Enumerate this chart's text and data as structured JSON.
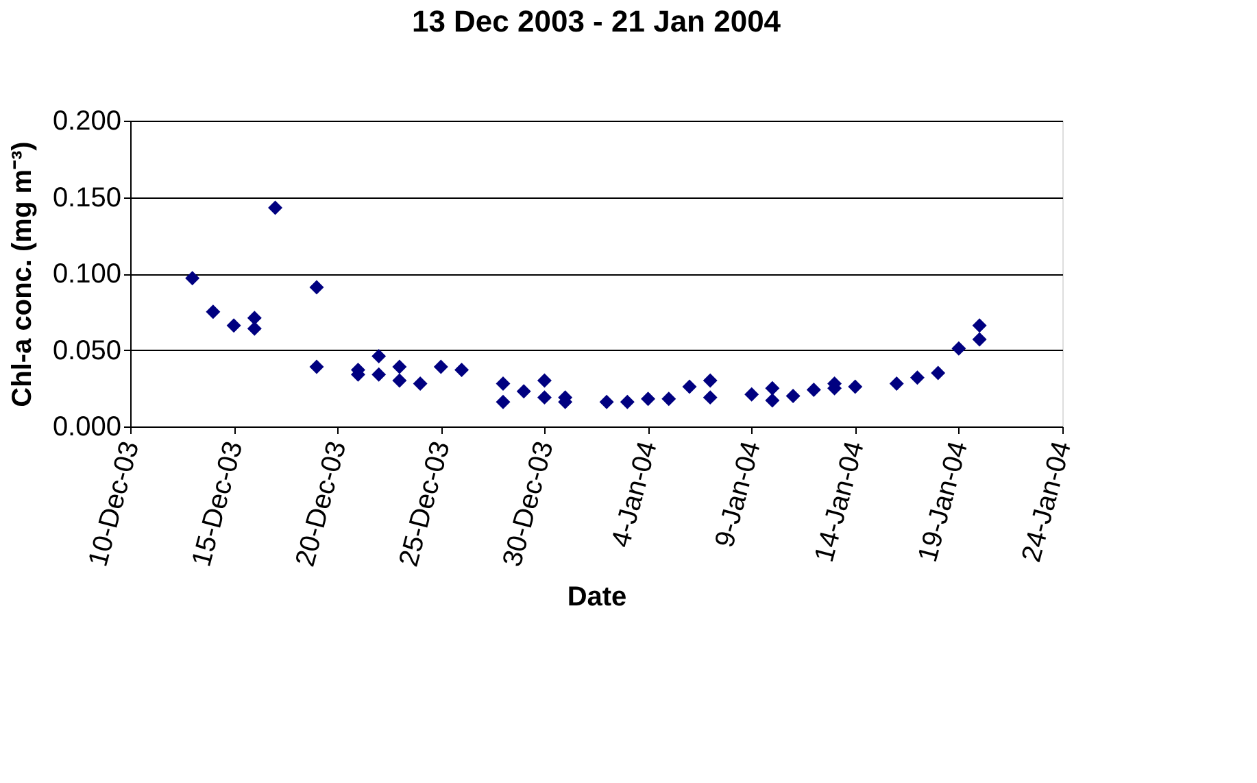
{
  "chart_data": {
    "type": "scatter",
    "title": "13 Dec 2003 - 21 Jan 2004",
    "xlabel": "Date",
    "ylabel": "Chl-a conc.  (mg m⁻³)",
    "x": [
      "2003-12-13",
      "2003-12-14",
      "2003-12-15",
      "2003-12-16",
      "2003-12-16",
      "2003-12-17",
      "2003-12-19",
      "2003-12-19",
      "2003-12-21",
      "2003-12-21",
      "2003-12-22",
      "2003-12-22",
      "2003-12-23",
      "2003-12-23",
      "2003-12-24",
      "2003-12-25",
      "2003-12-26",
      "2003-12-28",
      "2003-12-28",
      "2003-12-29",
      "2003-12-30",
      "2003-12-30",
      "2003-12-31",
      "2003-12-31",
      "2004-01-02",
      "2004-01-03",
      "2004-01-04",
      "2004-01-05",
      "2004-01-06",
      "2004-01-07",
      "2004-01-07",
      "2004-01-09",
      "2004-01-10",
      "2004-01-10",
      "2004-01-11",
      "2004-01-12",
      "2004-01-13",
      "2004-01-13",
      "2004-01-14",
      "2004-01-16",
      "2004-01-17",
      "2004-01-18",
      "2004-01-19",
      "2004-01-20",
      "2004-01-20"
    ],
    "series": [
      {
        "color": "#000080",
        "values": [
          0.097,
          0.075,
          0.066,
          0.071,
          0.064,
          0.143,
          0.091,
          0.039,
          0.037,
          0.034,
          0.046,
          0.034,
          0.039,
          0.03,
          0.028,
          0.039,
          0.037,
          0.028,
          0.016,
          0.023,
          0.03,
          0.019,
          0.019,
          0.016,
          0.016,
          0.016,
          0.018,
          0.018,
          0.026,
          0.03,
          0.019,
          0.021,
          0.025,
          0.017,
          0.02,
          0.024,
          0.028,
          0.025,
          0.026,
          0.028,
          0.032,
          0.035,
          0.051,
          0.066,
          0.057
        ]
      }
    ],
    "xlim": [
      "2003-12-10",
      "2004-01-24"
    ],
    "xticks": [
      {
        "value": "2003-12-10",
        "label": "10-Dec-03"
      },
      {
        "value": "2003-12-15",
        "label": "15-Dec-03"
      },
      {
        "value": "2003-12-20",
        "label": "20-Dec-03"
      },
      {
        "value": "2003-12-25",
        "label": "25-Dec-03"
      },
      {
        "value": "2003-12-30",
        "label": "30-Dec-03"
      },
      {
        "value": "2004-01-04",
        "label": "4-Jan-04"
      },
      {
        "value": "2004-01-09",
        "label": "9-Jan-04"
      },
      {
        "value": "2004-01-14",
        "label": "14-Jan-04"
      },
      {
        "value": "2004-01-19",
        "label": "19-Jan-04"
      },
      {
        "value": "2004-01-24",
        "label": "24-Jan-04"
      }
    ],
    "ylim": [
      0,
      0.2
    ],
    "yticks": [
      {
        "value": 0,
        "label": "0.000"
      },
      {
        "value": 0.05,
        "label": "0.050"
      },
      {
        "value": 0.1,
        "label": "0.100"
      },
      {
        "value": 0.15,
        "label": "0.150"
      },
      {
        "value": 0.2,
        "label": "0.200"
      }
    ],
    "grid": "y",
    "marker": "diamond",
    "legend": false
  }
}
